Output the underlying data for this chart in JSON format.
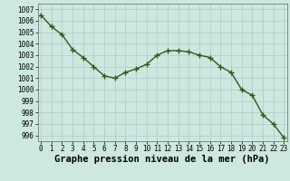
{
  "x": [
    0,
    1,
    2,
    3,
    4,
    5,
    6,
    7,
    8,
    9,
    10,
    11,
    12,
    13,
    14,
    15,
    16,
    17,
    18,
    19,
    20,
    21,
    22,
    23
  ],
  "y": [
    1006.5,
    1005.5,
    1004.8,
    1003.5,
    1002.8,
    1002.0,
    1001.2,
    1001.0,
    1001.5,
    1001.8,
    1002.2,
    1003.0,
    1003.4,
    1003.4,
    1003.3,
    1003.0,
    1002.8,
    1002.0,
    1001.5,
    1000.0,
    999.5,
    997.8,
    997.0,
    995.8
  ],
  "line_color": "#2d5a1b",
  "marker_color": "#2d5a1b",
  "bg_color": "#cce8e0",
  "grid_color": "#aaccc4",
  "xlabel": "Graphe pression niveau de la mer (hPa)",
  "ylim": [
    995.5,
    1007.5
  ],
  "xlim": [
    -0.3,
    23.3
  ],
  "yticks": [
    996,
    997,
    998,
    999,
    1000,
    1001,
    1002,
    1003,
    1004,
    1005,
    1006,
    1007
  ],
  "xticks": [
    0,
    1,
    2,
    3,
    4,
    5,
    6,
    7,
    8,
    9,
    10,
    11,
    12,
    13,
    14,
    15,
    16,
    17,
    18,
    19,
    20,
    21,
    22,
    23
  ],
  "tick_fontsize": 5.5,
  "xlabel_fontsize": 7.5,
  "marker_size": 2.5,
  "line_width": 1.0
}
